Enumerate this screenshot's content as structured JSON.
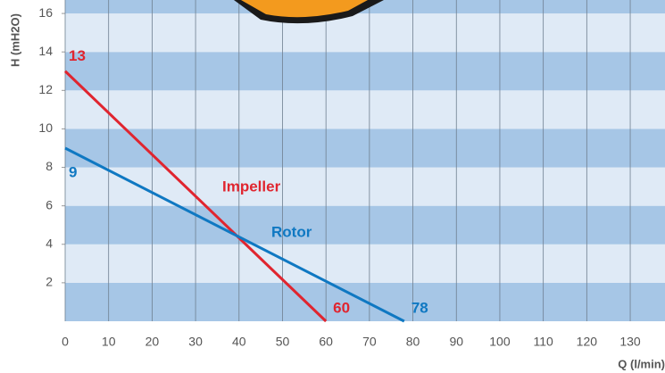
{
  "chart_data": {
    "type": "line",
    "xlabel": "Q (l/min)",
    "ylabel": "H (mH2O)",
    "series": [
      {
        "name": "Impeller",
        "color": "#e0252f",
        "x": [
          0,
          60
        ],
        "values": [
          13,
          0
        ]
      },
      {
        "name": "Rotor",
        "color": "#0f78c2",
        "x": [
          0,
          78
        ],
        "values": [
          9,
          0
        ]
      }
    ],
    "xlim": [
      0,
      138
    ],
    "ylim": [
      0,
      16.7
    ],
    "xticks": [
      0,
      10,
      20,
      30,
      40,
      50,
      60,
      70,
      80,
      90,
      100,
      110,
      120,
      130
    ],
    "yticks": [
      2,
      4,
      6,
      8,
      10,
      12,
      14,
      16
    ],
    "grid": true
  }
}
